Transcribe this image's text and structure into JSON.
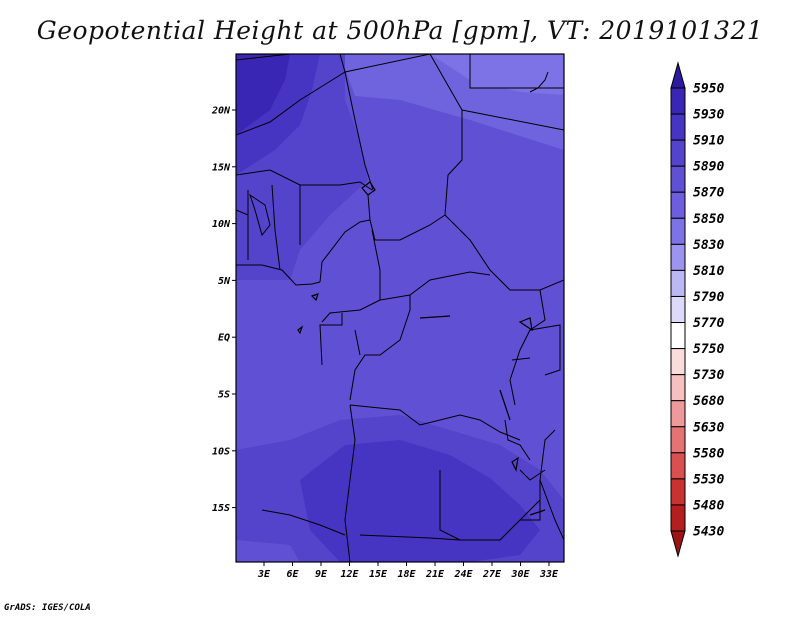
{
  "title": "Geopotential Height at 500hPa [gpm], VT: 2019101321",
  "credit": "GrADS: IGES/COLA",
  "map": {
    "lon_ticks": [
      "3E",
      "6E",
      "9E",
      "12E",
      "15E",
      "18E",
      "21E",
      "24E",
      "27E",
      "30E",
      "33E"
    ],
    "lat_ticks": [
      "20N",
      "15N",
      "10N",
      "5N",
      "EQ",
      "5S",
      "10S",
      "15S"
    ]
  },
  "colorbar": {
    "levels": [
      "5950",
      "5930",
      "5910",
      "5890",
      "5870",
      "5850",
      "5830",
      "5810",
      "5790",
      "5770",
      "5750",
      "5730",
      "5680",
      "5630",
      "5580",
      "5530",
      "5480",
      "5430"
    ],
    "colors": [
      "#2d1aa0",
      "#3a26b4",
      "#4634c2",
      "#5444cc",
      "#6050d4",
      "#6c5ede",
      "#7d72e6",
      "#9c94ee",
      "#bcb8f4",
      "#dcdaf8",
      "#ffffff",
      "#fbdcdc",
      "#f6c0c0",
      "#ee9a9a",
      "#e47474",
      "#d85050",
      "#ca3232",
      "#b41e1e",
      "#9e1414"
    ]
  },
  "colors": {
    "height_5930": "#3a26b4",
    "height_5910": "#4634c2",
    "height_5890": "#5444cc",
    "height_5870": "#6050d4",
    "height_5850": "#6c5ede",
    "height_5830": "#7d72e6"
  }
}
